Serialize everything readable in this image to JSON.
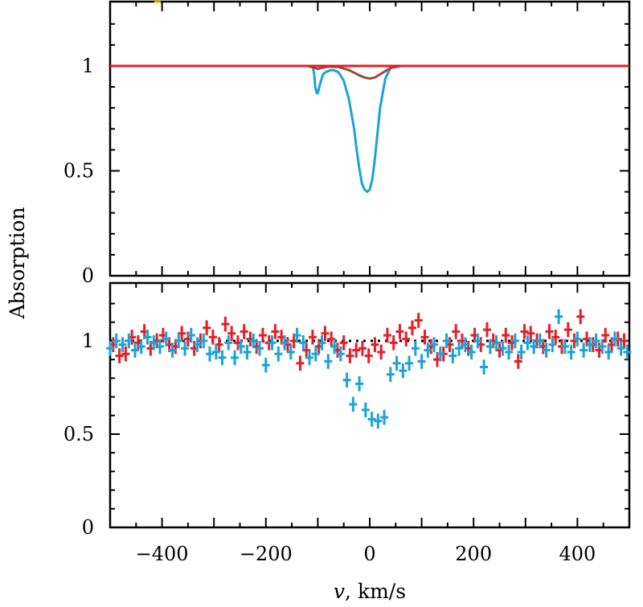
{
  "chart_data": {
    "type": "line",
    "xlabel_var": "v",
    "xlabel_units": ", km/s",
    "ylabel": "Absorption",
    "xlim": [
      -500,
      500
    ],
    "x_ticks": [
      -400,
      -200,
      0,
      200,
      400
    ],
    "x_tick_labels": [
      "−400",
      "−200",
      "0",
      "200",
      "400"
    ],
    "colors": {
      "blue": "#1ba3d8",
      "red": "#e41f26",
      "brown": "#9b4a3c",
      "yellow": "#ffe600"
    },
    "panels": [
      {
        "id": "model",
        "type": "line",
        "ylim": [
          0,
          1.27
        ],
        "y_ticks": [
          0,
          0.5,
          1
        ],
        "y_tick_labels": [
          "0",
          "0.5",
          "1"
        ],
        "continuum": 1,
        "series": [
          {
            "color": "#1ba3d8",
            "style": "line",
            "x": [
              -500,
              -110,
              -107,
              -105,
              -102,
              -100,
              -95,
              -90,
              -85,
              -80,
              -75,
              -70,
              -60,
              -50,
              -40,
              -30,
              -25,
              -20,
              -15,
              -10,
              -5,
              0,
              5,
              10,
              15,
              20,
              30,
              40,
              50,
              60,
              500
            ],
            "y": [
              1,
              1,
              0.96,
              0.9,
              0.87,
              0.87,
              0.92,
              0.96,
              0.97,
              0.975,
              0.98,
              0.98,
              0.97,
              0.93,
              0.84,
              0.7,
              0.6,
              0.51,
              0.44,
              0.41,
              0.4,
              0.41,
              0.46,
              0.56,
              0.68,
              0.8,
              0.94,
              0.99,
              1,
              1,
              1
            ]
          },
          {
            "color": "#9b4a3c",
            "style": "line",
            "x": [
              -500,
              -120,
              -105,
              -100,
              -95,
              -80,
              -60,
              -40,
              -20,
              -10,
              0,
              10,
              20,
              40,
              60,
              500
            ],
            "y": [
              1,
              1,
              0.99,
              0.985,
              0.99,
              0.997,
              0.995,
              0.98,
              0.955,
              0.945,
              0.94,
              0.945,
              0.96,
              0.99,
              1,
              1
            ]
          },
          {
            "color": "#e41f26",
            "style": "line",
            "x": [
              -500,
              -440,
              400,
              500
            ],
            "y": [
              1,
              1,
              1,
              1
            ]
          }
        ]
      },
      {
        "id": "data",
        "type": "scatter",
        "ylim": [
          0,
          1.27
        ],
        "y_ticks": [
          0,
          0.5,
          1
        ],
        "y_tick_labels": [
          "0",
          "0.5",
          "1"
        ],
        "continuum": 1,
        "series": [
          {
            "color": "#e41f26",
            "style": "errorbar",
            "x": [
              -494,
              -482,
              -470,
              -458,
              -446,
              -434,
              -422,
              -410,
              -398,
              -386,
              -374,
              -362,
              -350,
              -338,
              -326,
              -314,
              -302,
              -290,
              -278,
              -266,
              -254,
              -242,
              -230,
              -218,
              -206,
              -194,
              -182,
              -170,
              -158,
              -146,
              -134,
              -122,
              -110,
              -98,
              -86,
              -74,
              -62,
              -50,
              -38,
              -26,
              -14,
              -2,
              10,
              22,
              34,
              46,
              58,
              70,
              82,
              94,
              106,
              118,
              130,
              142,
              154,
              166,
              178,
              190,
              202,
              214,
              226,
              238,
              250,
              262,
              274,
              286,
              298,
              310,
              322,
              334,
              346,
              358,
              370,
              382,
              394,
              406,
              418,
              430,
              442,
              454,
              466,
              478,
              490
            ],
            "y": [
              0.98,
              0.92,
              0.93,
              1.02,
              0.99,
              1.05,
              0.96,
              1.0,
              1.03,
              0.98,
              0.97,
              1.04,
              1.01,
              0.96,
              1.0,
              1.07,
              1.02,
              0.98,
              1.09,
              1.04,
              0.99,
              1.05,
              1.01,
              0.97,
              1.03,
              0.99,
              1.05,
              1.02,
              0.98,
              1.0,
              0.88,
              0.95,
              1.02,
              0.97,
              1.04,
              1.01,
              0.95,
              0.99,
              0.92,
              0.95,
              0.96,
              0.92,
              0.98,
              0.94,
              1.03,
              0.99,
              1.05,
              1.01,
              1.07,
              1.11,
              1.02,
              0.97,
              0.9,
              0.93,
              0.98,
              1.05,
              1.0,
              0.96,
              1.03,
              0.98,
              1.06,
              1.0,
              0.95,
              1.03,
              0.99,
              0.89,
              1.05,
              1.04,
              1.0,
              0.97,
              1.05,
              1.02,
              0.97,
              1.06,
              1.0,
              1.13,
              1.01,
              0.98,
              0.95,
              1.03,
              0.98,
              1.01,
              1.0
            ],
            "err": [
              0.04,
              0.04,
              0.04,
              0.04,
              0.04,
              0.04,
              0.04,
              0.04,
              0.04,
              0.04,
              0.04,
              0.04,
              0.04,
              0.04,
              0.04,
              0.04,
              0.04,
              0.04,
              0.04,
              0.04,
              0.04,
              0.04,
              0.04,
              0.04,
              0.04,
              0.04,
              0.04,
              0.04,
              0.04,
              0.04,
              0.04,
              0.04,
              0.04,
              0.04,
              0.04,
              0.04,
              0.04,
              0.04,
              0.04,
              0.04,
              0.04,
              0.04,
              0.04,
              0.04,
              0.04,
              0.04,
              0.04,
              0.04,
              0.04,
              0.04,
              0.04,
              0.04,
              0.04,
              0.04,
              0.04,
              0.04,
              0.04,
              0.04,
              0.04,
              0.04,
              0.04,
              0.04,
              0.04,
              0.04,
              0.04,
              0.04,
              0.04,
              0.04,
              0.04,
              0.04,
              0.04,
              0.04,
              0.04,
              0.04,
              0.04,
              0.04,
              0.04,
              0.04,
              0.04,
              0.04,
              0.04,
              0.04,
              0.04
            ]
          },
          {
            "color": "#1ba3d8",
            "style": "errorbar",
            "x": [
              -500,
              -488,
              -476,
              -464,
              -452,
              -440,
              -428,
              -416,
              -404,
              -392,
              -380,
              -368,
              -356,
              -344,
              -332,
              -320,
              -308,
              -296,
              -284,
              -272,
              -260,
              -248,
              -236,
              -224,
              -212,
              -200,
              -188,
              -176,
              -164,
              -152,
              -140,
              -128,
              -116,
              -104,
              -92,
              -80,
              -68,
              -56,
              -44,
              -32,
              -20,
              -8,
              4,
              16,
              28,
              40,
              52,
              64,
              76,
              88,
              100,
              112,
              124,
              136,
              148,
              160,
              172,
              184,
              196,
              208,
              220,
              232,
              244,
              256,
              268,
              280,
              292,
              304,
              316,
              328,
              340,
              352,
              364,
              376,
              388,
              400,
              412,
              424,
              436,
              448,
              460,
              472,
              484,
              496
            ],
            "y": [
              0.96,
              1.0,
              0.98,
              1.0,
              0.95,
              0.97,
              1.02,
              0.99,
              0.97,
              1.01,
              0.95,
              1.0,
              0.96,
              1.03,
              0.98,
              1.0,
              0.93,
              0.94,
              0.91,
              0.99,
              0.91,
              0.97,
              0.94,
              1.0,
              0.96,
              0.87,
              0.99,
              0.93,
              0.99,
              0.94,
              1.03,
              0.99,
              0.91,
              0.93,
              0.99,
              0.89,
              0.97,
              0.93,
              0.79,
              0.66,
              0.77,
              0.63,
              0.58,
              0.57,
              0.59,
              0.82,
              0.88,
              0.84,
              0.88,
              0.96,
              0.89,
              0.95,
              0.98,
              0.93,
              1.0,
              0.92,
              0.96,
              0.98,
              0.94,
              1.0,
              0.86,
              0.97,
              0.99,
              0.96,
              0.94,
              1.0,
              0.94,
              0.99,
              0.97,
              1.0,
              0.95,
              0.98,
              1.13,
              0.97,
              0.94,
              1.01,
              0.95,
              0.98,
              1.0,
              0.97,
              0.94,
              1.01,
              0.96,
              0.94
            ],
            "err": [
              0.04,
              0.04,
              0.04,
              0.04,
              0.04,
              0.04,
              0.04,
              0.04,
              0.04,
              0.04,
              0.04,
              0.04,
              0.04,
              0.04,
              0.04,
              0.04,
              0.04,
              0.04,
              0.04,
              0.04,
              0.04,
              0.04,
              0.04,
              0.04,
              0.04,
              0.04,
              0.04,
              0.04,
              0.04,
              0.04,
              0.04,
              0.04,
              0.04,
              0.04,
              0.04,
              0.04,
              0.04,
              0.04,
              0.04,
              0.04,
              0.04,
              0.04,
              0.04,
              0.04,
              0.04,
              0.04,
              0.04,
              0.04,
              0.04,
              0.04,
              0.04,
              0.04,
              0.04,
              0.04,
              0.04,
              0.04,
              0.04,
              0.04,
              0.04,
              0.04,
              0.04,
              0.04,
              0.04,
              0.04,
              0.04,
              0.04,
              0.04,
              0.04,
              0.04,
              0.04,
              0.04,
              0.04,
              0.04,
              0.04,
              0.04,
              0.04,
              0.04,
              0.04,
              0.04,
              0.04,
              0.04,
              0.04,
              0.04,
              0.04
            ]
          }
        ]
      }
    ]
  }
}
